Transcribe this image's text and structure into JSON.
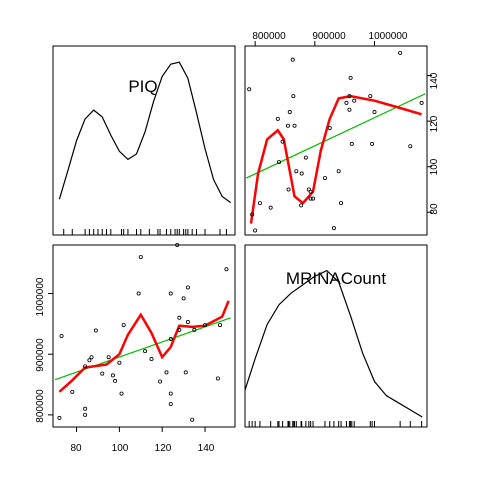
{
  "chart_data": [
    {
      "type": "line",
      "panel": "density-PIQ",
      "label": "PIQ",
      "x": [
        72,
        76,
        80,
        84,
        88,
        92,
        96,
        100,
        104,
        108,
        112,
        116,
        120,
        124,
        128,
        132,
        136,
        140,
        144,
        148,
        152
      ],
      "y": [
        0.0053,
        0.0096,
        0.014,
        0.0172,
        0.0185,
        0.0175,
        0.0148,
        0.0124,
        0.0112,
        0.012,
        0.0153,
        0.0198,
        0.0235,
        0.0253,
        0.0256,
        0.0232,
        0.0181,
        0.0128,
        0.0082,
        0.0057,
        0.0048
      ],
      "rug": [
        74,
        78,
        84,
        86,
        88,
        90,
        92,
        94,
        96,
        101,
        102,
        104,
        108,
        110,
        114,
        118,
        119,
        122,
        124,
        126,
        127,
        128,
        130,
        131,
        132,
        134,
        136,
        140,
        147,
        150
      ],
      "ylim": [
        0,
        0.028
      ]
    },
    {
      "type": "scatter",
      "panel": "MRINACount-vs-PIQ",
      "points": [
        [
          72,
          795000
        ],
        [
          73,
          930000
        ],
        [
          78,
          838000
        ],
        [
          84,
          800000
        ],
        [
          84,
          810000
        ],
        [
          84,
          880000
        ],
        [
          86,
          890000
        ],
        [
          87,
          895000
        ],
        [
          89,
          939000
        ],
        [
          92,
          868000
        ],
        [
          95,
          895000
        ],
        [
          97,
          865000
        ],
        [
          98,
          856000
        ],
        [
          100,
          886000
        ],
        [
          101,
          835000
        ],
        [
          102,
          948000
        ],
        [
          109,
          1000000
        ],
        [
          110,
          1060000
        ],
        [
          112,
          905000
        ],
        [
          115,
          892000
        ],
        [
          119,
          855000
        ],
        [
          122,
          870000
        ],
        [
          124,
          835000
        ],
        [
          124,
          818000
        ],
        [
          124,
          925000
        ],
        [
          124,
          1000000
        ],
        [
          127,
          1080000
        ],
        [
          128,
          960000
        ],
        [
          128,
          940000
        ],
        [
          130,
          992000
        ],
        [
          131,
          870000
        ],
        [
          132,
          1010000
        ],
        [
          132,
          953000
        ],
        [
          134,
          792000
        ],
        [
          135,
          940000
        ],
        [
          140,
          948000
        ],
        [
          146,
          860000
        ],
        [
          147,
          948000
        ],
        [
          150,
          1040000
        ]
      ],
      "regression": [
        [
          70,
          858000
        ],
        [
          152,
          960000
        ]
      ],
      "smooth": [
        [
          72,
          838000
        ],
        [
          78,
          857000
        ],
        [
          84,
          878000
        ],
        [
          94,
          883000
        ],
        [
          100,
          900000
        ],
        [
          104,
          932000
        ],
        [
          110,
          965000
        ],
        [
          115,
          935000
        ],
        [
          120,
          895000
        ],
        [
          124,
          912000
        ],
        [
          128,
          947000
        ],
        [
          134,
          945000
        ],
        [
          140,
          947000
        ],
        [
          148,
          962000
        ],
        [
          151,
          988000
        ]
      ],
      "xlim": [
        69,
        154
      ],
      "ylim": [
        780000,
        1080000
      ]
    },
    {
      "type": "scatter",
      "panel": "PIQ-vs-MRINACount",
      "x_axis_ticks": [
        "800000",
        "900000",
        "1000000"
      ],
      "points": [
        [
          790000,
          134
        ],
        [
          795000,
          79
        ],
        [
          800000,
          72
        ],
        [
          808000,
          84
        ],
        [
          826000,
          82
        ],
        [
          838000,
          121
        ],
        [
          840000,
          102
        ],
        [
          846000,
          111
        ],
        [
          855000,
          118
        ],
        [
          856000,
          90
        ],
        [
          858000,
          124
        ],
        [
          863000,
          147
        ],
        [
          864000,
          131
        ],
        [
          866000,
          118
        ],
        [
          869000,
          98
        ],
        [
          877000,
          83
        ],
        [
          878000,
          97
        ],
        [
          885000,
          104
        ],
        [
          890000,
          90
        ],
        [
          893000,
          89
        ],
        [
          893000,
          86
        ],
        [
          897000,
          86
        ],
        [
          917000,
          95
        ],
        [
          925000,
          117
        ],
        [
          932000,
          73
        ],
        [
          940000,
          98
        ],
        [
          944000,
          84
        ],
        [
          953000,
          128
        ],
        [
          958000,
          125
        ],
        [
          958000,
          131
        ],
        [
          960000,
          139
        ],
        [
          962000,
          110
        ],
        [
          966000,
          129
        ],
        [
          993000,
          131
        ],
        [
          996000,
          110
        ],
        [
          1000000,
          124
        ],
        [
          1043000,
          150
        ],
        [
          1060000,
          109
        ],
        [
          1079000,
          128
        ]
      ],
      "regression": [
        [
          785000,
          95
        ],
        [
          1085000,
          132
        ]
      ],
      "smooth": [
        [
          793000,
          75
        ],
        [
          805000,
          97
        ],
        [
          820000,
          112
        ],
        [
          838000,
          116
        ],
        [
          848000,
          112
        ],
        [
          858000,
          98
        ],
        [
          866000,
          87
        ],
        [
          880000,
          84
        ],
        [
          897000,
          89
        ],
        [
          910000,
          107
        ],
        [
          925000,
          121
        ],
        [
          940000,
          130
        ],
        [
          960000,
          131
        ],
        [
          1000000,
          129
        ],
        [
          1040000,
          126
        ],
        [
          1079000,
          123
        ]
      ],
      "y_axis_ticks": [
        "80",
        "100",
        "120",
        "140"
      ],
      "xlim": [
        783000,
        1088000
      ],
      "ylim": [
        70,
        153
      ]
    },
    {
      "type": "line",
      "panel": "density-MRINACount",
      "label": "MRINACount",
      "x": [
        780000,
        800000,
        820000,
        840000,
        860000,
        880000,
        900000,
        920000,
        940000,
        960000,
        980000,
        1000000,
        1020000,
        1040000,
        1060000,
        1080000
      ],
      "y": [
        0.22,
        0.48,
        0.72,
        0.86,
        0.94,
        1.0,
        1.06,
        1.1,
        1.02,
        0.78,
        0.52,
        0.32,
        0.22,
        0.17,
        0.12,
        0.07
      ],
      "rug": [
        790000,
        795000,
        800000,
        808000,
        826000,
        838000,
        840000,
        846000,
        855000,
        856000,
        858000,
        863000,
        864000,
        866000,
        869000,
        877000,
        878000,
        885000,
        890000,
        893000,
        897000,
        917000,
        925000,
        932000,
        940000,
        944000,
        953000,
        958000,
        960000,
        962000,
        966000,
        993000,
        996000,
        1000000,
        1043000,
        1060000,
        1079000
      ],
      "ylim": [
        0,
        1.28
      ]
    }
  ],
  "axes": {
    "top_ticks": [
      "800000",
      "900000",
      "1000000"
    ],
    "right_ticks": [
      "80",
      "100",
      "120",
      "140"
    ],
    "left_ticks": [
      "800000",
      "900000",
      "1000000"
    ],
    "bottom_ticks": [
      "80",
      "100",
      "120",
      "140"
    ]
  },
  "colors": {
    "smooth": "#ff0000",
    "regression": "#00bb00",
    "points": "#000000",
    "density": "#000000"
  }
}
